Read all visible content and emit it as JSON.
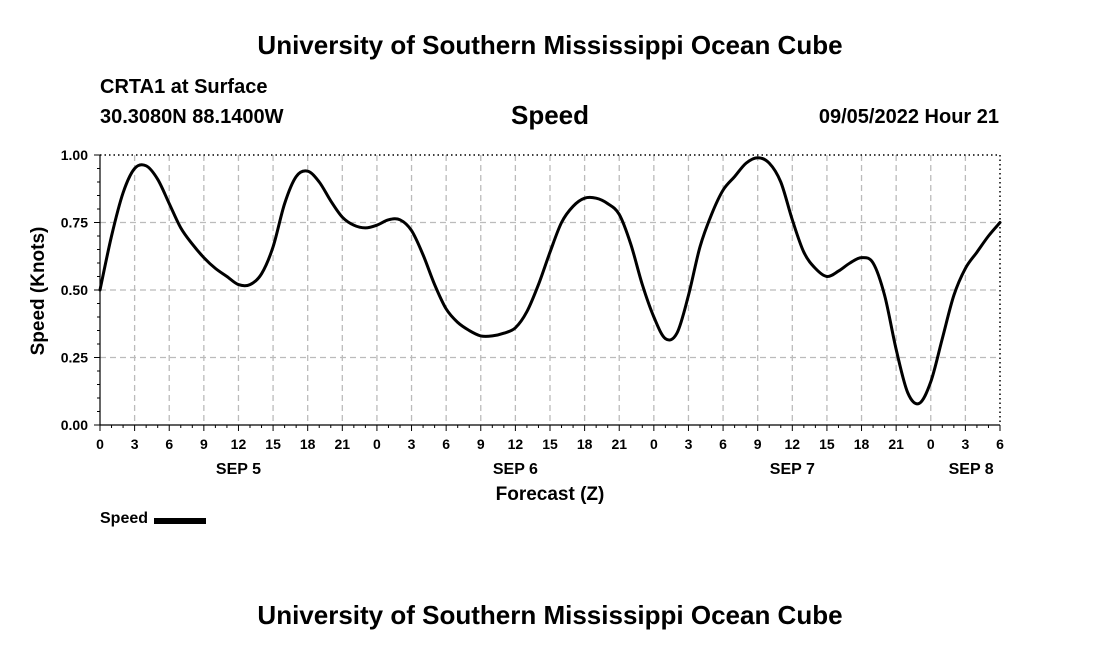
{
  "header": {
    "title": "University of Southern Mississippi Ocean Cube",
    "station": "CRTA1 at Surface",
    "coords": "30.3080N  88.1400W",
    "variable": "Speed",
    "datetime": "09/05/2022 Hour 21"
  },
  "footer": {
    "title": "University of Southern Mississippi Ocean Cube"
  },
  "legend": {
    "label": "Speed"
  },
  "chart_data": {
    "type": "line",
    "title": "Speed",
    "xlabel": "Forecast (Z)",
    "ylabel": "Speed (Knots)",
    "xlim": [
      0,
      78
    ],
    "ylim": [
      0,
      1
    ],
    "grid": true,
    "line_color": "#000000",
    "grid_color": "#bbbbbb",
    "x_ticks": [
      {
        "x": 0,
        "label": "0"
      },
      {
        "x": 3,
        "label": "3"
      },
      {
        "x": 6,
        "label": "6"
      },
      {
        "x": 9,
        "label": "9"
      },
      {
        "x": 12,
        "label": "12"
      },
      {
        "x": 15,
        "label": "15"
      },
      {
        "x": 18,
        "label": "18"
      },
      {
        "x": 21,
        "label": "21"
      },
      {
        "x": 24,
        "label": "0"
      },
      {
        "x": 27,
        "label": "3"
      },
      {
        "x": 30,
        "label": "6"
      },
      {
        "x": 33,
        "label": "9"
      },
      {
        "x": 36,
        "label": "12"
      },
      {
        "x": 39,
        "label": "15"
      },
      {
        "x": 42,
        "label": "18"
      },
      {
        "x": 45,
        "label": "21"
      },
      {
        "x": 48,
        "label": "0"
      },
      {
        "x": 51,
        "label": "3"
      },
      {
        "x": 54,
        "label": "6"
      },
      {
        "x": 57,
        "label": "9"
      },
      {
        "x": 60,
        "label": "12"
      },
      {
        "x": 63,
        "label": "15"
      },
      {
        "x": 66,
        "label": "18"
      },
      {
        "x": 69,
        "label": "21"
      },
      {
        "x": 72,
        "label": "0"
      },
      {
        "x": 75,
        "label": "3"
      },
      {
        "x": 78,
        "label": "6"
      }
    ],
    "y_ticks": [
      {
        "y": 0.0,
        "label": "0.00"
      },
      {
        "y": 0.25,
        "label": "0.25"
      },
      {
        "y": 0.5,
        "label": "0.50"
      },
      {
        "y": 0.75,
        "label": "0.75"
      },
      {
        "y": 1.0,
        "label": "1.00"
      }
    ],
    "date_labels": [
      {
        "x": 12,
        "label": "SEP 5"
      },
      {
        "x": 36,
        "label": "SEP 6"
      },
      {
        "x": 60,
        "label": "SEP 7"
      },
      {
        "x": 75.5,
        "label": "SEP 8"
      }
    ],
    "series": [
      {
        "name": "Speed",
        "x": [
          0,
          1,
          2,
          3,
          4,
          5,
          6,
          7,
          8,
          9,
          10,
          11,
          12,
          13,
          14,
          15,
          16,
          17,
          18,
          19,
          20,
          21,
          22,
          23,
          24,
          25,
          26,
          27,
          28,
          29,
          30,
          31,
          32,
          33,
          34,
          35,
          36,
          37,
          38,
          39,
          40,
          41,
          42,
          43,
          44,
          45,
          46,
          47,
          48,
          49,
          50,
          51,
          52,
          53,
          54,
          55,
          56,
          57,
          58,
          59,
          60,
          61,
          62,
          63,
          64,
          65,
          66,
          67,
          68,
          69,
          70,
          71,
          72,
          73,
          74,
          75,
          76,
          77,
          78
        ],
        "values": [
          0.5,
          0.7,
          0.86,
          0.95,
          0.96,
          0.91,
          0.82,
          0.73,
          0.67,
          0.62,
          0.58,
          0.55,
          0.52,
          0.52,
          0.56,
          0.66,
          0.82,
          0.92,
          0.94,
          0.9,
          0.83,
          0.77,
          0.74,
          0.73,
          0.74,
          0.76,
          0.76,
          0.72,
          0.63,
          0.52,
          0.43,
          0.38,
          0.35,
          0.33,
          0.33,
          0.34,
          0.36,
          0.42,
          0.52,
          0.64,
          0.75,
          0.81,
          0.84,
          0.84,
          0.82,
          0.78,
          0.67,
          0.52,
          0.4,
          0.32,
          0.34,
          0.48,
          0.66,
          0.78,
          0.87,
          0.92,
          0.97,
          0.99,
          0.97,
          0.9,
          0.76,
          0.64,
          0.58,
          0.55,
          0.57,
          0.6,
          0.62,
          0.6,
          0.48,
          0.28,
          0.12,
          0.08,
          0.16,
          0.32,
          0.48,
          0.58,
          0.64,
          0.7,
          0.75
        ]
      }
    ]
  }
}
